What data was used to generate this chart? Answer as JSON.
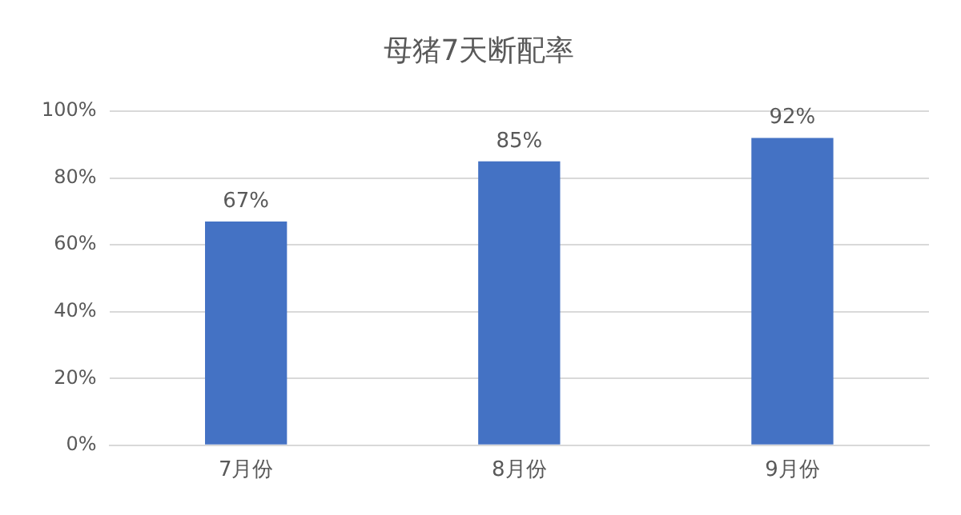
{
  "chart_data": {
    "type": "bar",
    "title": "母猪7天断配率",
    "categories": [
      "7月份",
      "8月份",
      "9月份"
    ],
    "values": [
      67,
      85,
      92
    ],
    "color": "#4472c4",
    "value_labels": [
      "67%",
      "85%",
      "92%"
    ],
    "ylim": [
      0,
      100
    ],
    "yticks": [
      {
        "value": 0,
        "label": "0%"
      },
      {
        "value": 20,
        "label": "20%"
      },
      {
        "value": 40,
        "label": "40%"
      },
      {
        "value": 60,
        "label": "60%"
      },
      {
        "value": 80,
        "label": "80%"
      },
      {
        "value": 100,
        "label": "100%"
      }
    ],
    "grid": "y",
    "legend": false
  }
}
